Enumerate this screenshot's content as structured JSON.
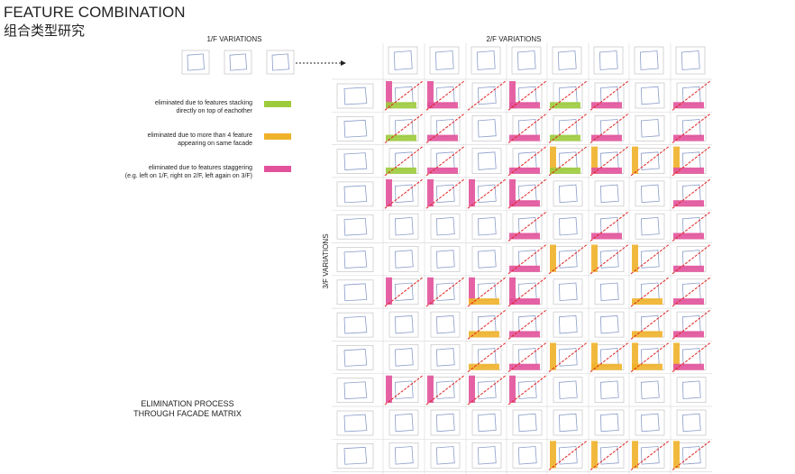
{
  "header": {
    "title": "FEATURE COMBINATION",
    "subtitle": "组合类型研究"
  },
  "labels": {
    "first_floor": "1/F VARIATIONS",
    "second_floor": "2/F VARIATIONS",
    "third_floor": "3/F VARIATIONS"
  },
  "legend": [
    {
      "lines": [
        "eliminated due to features stacking",
        "directly on top of eachother"
      ]
    },
    {
      "lines": [
        "eliminated due to more than 4 feature",
        "appearing on same facade"
      ]
    },
    {
      "lines": [
        "eliminated due to features staggering",
        "(e.g. left on 1/F, right on 2/F, left again on 3/F)"
      ]
    }
  ],
  "caption": {
    "lines": [
      "ELIMINATION PROCESS",
      "THROUGH FACADE MATRIX"
    ]
  }
}
